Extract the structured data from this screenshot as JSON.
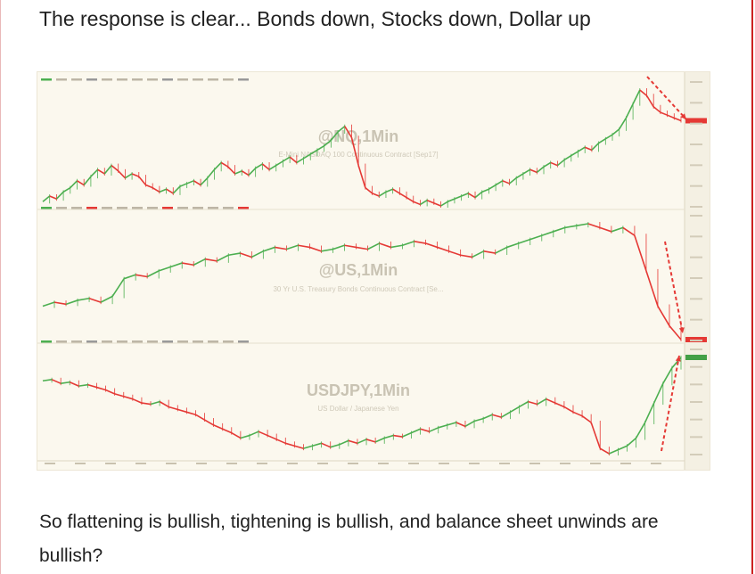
{
  "heading": "The response is clear... Bonds down, Stocks down, Dollar up",
  "paragraph": "So flattening is bullish, tightening is bullish, and balance sheet unwinds are bullish?",
  "chart_data": [
    {
      "type": "line",
      "symbol": "@NQ,1Min",
      "subtitle": "E-Mini NASDAQ 100 Continuous Contract [Sep17]",
      "annotation": "red arrow: down",
      "values": [
        18,
        22,
        20,
        25,
        28,
        33,
        30,
        36,
        41,
        38,
        44,
        40,
        35,
        38,
        36,
        30,
        28,
        25,
        27,
        24,
        29,
        31,
        33,
        30,
        35,
        41,
        46,
        43,
        38,
        40,
        37,
        42,
        45,
        41,
        44,
        47,
        50,
        46,
        49,
        52,
        55,
        58,
        62,
        68,
        72,
        64,
        44,
        28,
        24,
        22,
        25,
        27,
        24,
        21,
        18,
        16,
        19,
        17,
        15,
        18,
        20,
        22,
        24,
        21,
        25,
        27,
        30,
        33,
        31,
        35,
        38,
        41,
        39,
        43,
        46,
        44,
        48,
        51,
        54,
        57,
        55,
        60,
        63,
        66,
        70,
        78,
        88,
        98,
        94,
        86,
        82,
        80,
        78,
        76
      ]
    },
    {
      "type": "line",
      "symbol": "@US,1Min",
      "subtitle": "30 Yr U.S. Treasury Bonds Continuous Contract [Se...",
      "annotation": "red arrow: down",
      "values": [
        22,
        24,
        23,
        25,
        26,
        24,
        27,
        36,
        38,
        37,
        40,
        42,
        44,
        43,
        46,
        45,
        48,
        49,
        47,
        50,
        52,
        51,
        53,
        52,
        50,
        51,
        53,
        52,
        51,
        54,
        52,
        53,
        55,
        54,
        52,
        50,
        48,
        47,
        50,
        49,
        52,
        54,
        56,
        58,
        60,
        62,
        63,
        64,
        62,
        60,
        62,
        58,
        40,
        22,
        12,
        5
      ]
    },
    {
      "type": "line",
      "symbol": "USDJPY,1Min",
      "subtitle": "US Dollar / Japanese Yen",
      "annotation": "red arrow: up",
      "values": [
        62,
        63,
        60,
        61,
        58,
        59,
        57,
        55,
        52,
        50,
        48,
        45,
        44,
        46,
        42,
        40,
        38,
        36,
        32,
        28,
        25,
        22,
        18,
        20,
        23,
        20,
        17,
        14,
        12,
        10,
        12,
        14,
        11,
        13,
        16,
        14,
        17,
        15,
        18,
        20,
        19,
        22,
        25,
        23,
        26,
        28,
        30,
        27,
        31,
        33,
        36,
        34,
        38,
        42,
        46,
        44,
        48,
        45,
        42,
        38,
        35,
        30,
        10,
        6,
        9,
        12,
        18,
        30,
        45,
        60,
        72,
        80
      ]
    }
  ]
}
